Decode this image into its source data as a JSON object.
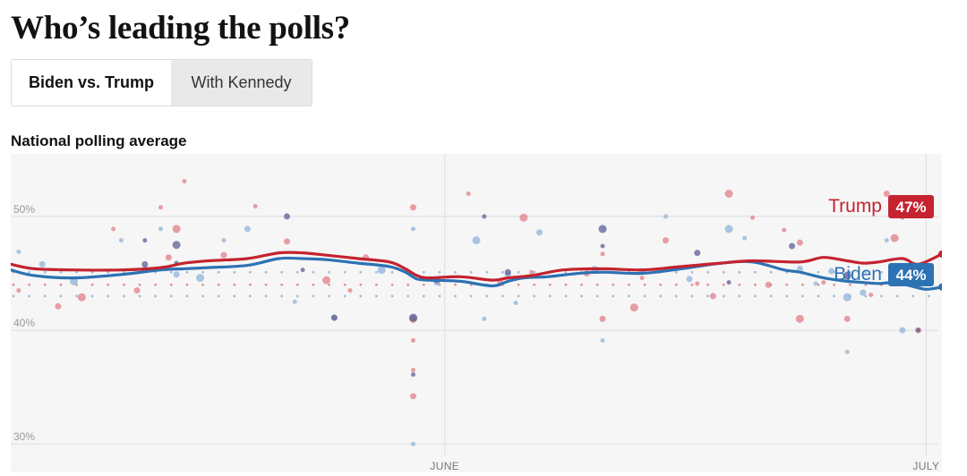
{
  "headline": "Who’s leading the polls?",
  "tabs": [
    {
      "label": "Biden vs. Trump",
      "active": true
    },
    {
      "label": "With Kennedy",
      "active": false
    }
  ],
  "chart_data": {
    "type": "line",
    "title": "National polling average",
    "xlabel": "",
    "ylabel": "",
    "x_range": [
      0,
      118
    ],
    "ylim": [
      27.5,
      55.5
    ],
    "y_ticks": [
      {
        "value": 50,
        "label": "50%"
      },
      {
        "value": 40,
        "label": "40%"
      },
      {
        "value": 30,
        "label": "30%"
      }
    ],
    "x_ticks": [
      {
        "day": 55,
        "label": "JUNE"
      },
      {
        "day": 116,
        "label": "JULY"
      }
    ],
    "series": [
      {
        "name": "Trump",
        "color": "#c4232f",
        "dot_color": "#e07f86",
        "label_value": "47%",
        "x": [
          0,
          3,
          8,
          14,
          19,
          22,
          25,
          30,
          34,
          37,
          40,
          44,
          48,
          50,
          51.5,
          53,
          57,
          61,
          63,
          66,
          70,
          75,
          80,
          85,
          90,
          94,
          100,
          103,
          106,
          108,
          110,
          113,
          115,
          118
        ],
        "values": [
          45.8,
          45.4,
          45.3,
          45.3,
          45.5,
          45.9,
          46.1,
          46.3,
          46.8,
          46.8,
          46.6,
          46.3,
          46.0,
          45.4,
          44.8,
          44.6,
          44.7,
          44.4,
          44.6,
          44.8,
          45.3,
          45.4,
          45.3,
          45.6,
          45.9,
          46.1,
          46.0,
          46.4,
          46.1,
          45.9,
          46.0,
          46.3,
          45.8,
          46.7
        ]
      },
      {
        "name": "Biden",
        "color": "#2d72b3",
        "dot_color": "#8fb3da",
        "label_value": "44%",
        "x": [
          0,
          3,
          8,
          14,
          19,
          22,
          25,
          30,
          34,
          37,
          40,
          44,
          48,
          50,
          51.5,
          53,
          57,
          61,
          63,
          65,
          68,
          72,
          75,
          80,
          85,
          90,
          94,
          98,
          100,
          103,
          106,
          108,
          110,
          112,
          114,
          116,
          118
        ],
        "values": [
          45.3,
          44.8,
          44.6,
          44.9,
          45.3,
          45.4,
          45.5,
          45.7,
          46.3,
          46.3,
          46.2,
          45.9,
          45.6,
          45.1,
          44.5,
          44.4,
          44.3,
          43.9,
          44.3,
          44.6,
          44.7,
          45.0,
          45.1,
          45.0,
          45.4,
          45.9,
          46.0,
          45.3,
          45.1,
          44.6,
          44.3,
          44.2,
          44.1,
          44.2,
          43.9,
          43.6,
          43.8
        ]
      }
    ],
    "trump_polls": [
      [
        1,
        43.5
      ],
      [
        6,
        42.1
      ],
      [
        9,
        42.9
      ],
      [
        13,
        48.9
      ],
      [
        16,
        43.5
      ],
      [
        19,
        50.8
      ],
      [
        20,
        46.4
      ],
      [
        21,
        48.9
      ],
      [
        22,
        53.1
      ],
      [
        27,
        46.6
      ],
      [
        31,
        50.9
      ],
      [
        35,
        47.8
      ],
      [
        40,
        44.4
      ],
      [
        43,
        43.5
      ],
      [
        45,
        46.4
      ],
      [
        51,
        39.1
      ],
      [
        51,
        50.8
      ],
      [
        51,
        41.0
      ],
      [
        51,
        36.5
      ],
      [
        51,
        34.2
      ],
      [
        58,
        52.0
      ],
      [
        62,
        44.3
      ],
      [
        65,
        49.9
      ],
      [
        66,
        45.1
      ],
      [
        73,
        45.0
      ],
      [
        75,
        46.7
      ],
      [
        75,
        41.0
      ],
      [
        79,
        42.0
      ],
      [
        80,
        44.6
      ],
      [
        83,
        47.9
      ],
      [
        87,
        44.1
      ],
      [
        89,
        43.0
      ],
      [
        91,
        52.0
      ],
      [
        94,
        49.9
      ],
      [
        96,
        44.0
      ],
      [
        98,
        48.8
      ],
      [
        100,
        47.7
      ],
      [
        100,
        41.0
      ],
      [
        103,
        44.2
      ],
      [
        106,
        41.0
      ],
      [
        109,
        43.1
      ],
      [
        111,
        52.0
      ],
      [
        112,
        48.1
      ],
      [
        113,
        49.9
      ],
      [
        115,
        40.0
      ]
    ],
    "biden_polls": [
      [
        1,
        46.9
      ],
      [
        4,
        45.8
      ],
      [
        8,
        44.3
      ],
      [
        14,
        47.9
      ],
      [
        17,
        45.4
      ],
      [
        19,
        48.9
      ],
      [
        21,
        44.9
      ],
      [
        24,
        44.6
      ],
      [
        27,
        47.9
      ],
      [
        30,
        48.9
      ],
      [
        36,
        42.5
      ],
      [
        41,
        41.1
      ],
      [
        47,
        45.3
      ],
      [
        51,
        48.9
      ],
      [
        51,
        41.0
      ],
      [
        51,
        30.0
      ],
      [
        54,
        44.2
      ],
      [
        59,
        47.9
      ],
      [
        60,
        41.0
      ],
      [
        63,
        44.9
      ],
      [
        64,
        42.4
      ],
      [
        67,
        48.6
      ],
      [
        74,
        45.3
      ],
      [
        75,
        39.1
      ],
      [
        80,
        45.2
      ],
      [
        83,
        50.0
      ],
      [
        86,
        44.5
      ],
      [
        91,
        48.9
      ],
      [
        93,
        48.1
      ],
      [
        100,
        45.4
      ],
      [
        102,
        44.1
      ],
      [
        104,
        45.2
      ],
      [
        106,
        42.9
      ],
      [
        106,
        38.1
      ],
      [
        108,
        43.3
      ],
      [
        111,
        47.9
      ],
      [
        113,
        40.0
      ],
      [
        115,
        44.0
      ]
    ],
    "mixed_polls": [
      [
        17,
        47.9
      ],
      [
        17,
        45.8
      ],
      [
        21,
        47.5
      ],
      [
        21,
        45.9
      ],
      [
        35,
        50.0
      ],
      [
        37,
        45.3
      ],
      [
        41,
        41.1
      ],
      [
        51,
        41.1
      ],
      [
        51,
        36.1
      ],
      [
        54,
        44.4
      ],
      [
        60,
        50.0
      ],
      [
        63,
        45.1
      ],
      [
        75,
        48.9
      ],
      [
        75,
        47.4
      ],
      [
        87,
        46.8
      ],
      [
        91,
        44.2
      ],
      [
        99,
        47.4
      ],
      [
        106,
        44.8
      ],
      [
        115,
        40.0
      ]
    ]
  }
}
